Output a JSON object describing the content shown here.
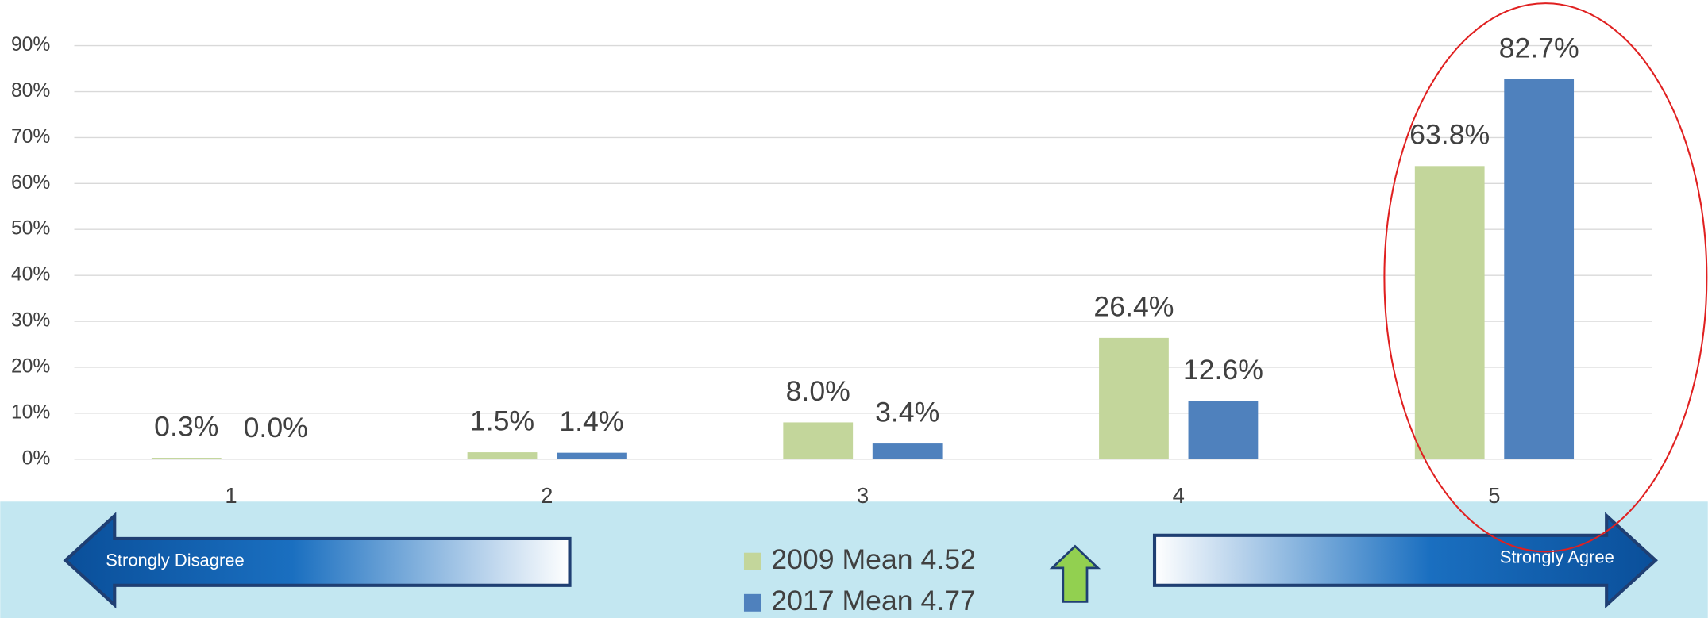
{
  "chart_data": {
    "type": "bar",
    "categories": [
      "1",
      "2",
      "3",
      "4",
      "5"
    ],
    "series": [
      {
        "name": "2009 Mean 4.52",
        "color": "#c3d69b",
        "values": [
          0.3,
          1.5,
          8.0,
          26.4,
          63.8
        ],
        "value_labels": [
          "0.3%",
          "1.5%",
          "8.0%",
          "26.4%",
          "63.8%"
        ]
      },
      {
        "name": "2017 Mean 4.77",
        "color": "#4f81bd",
        "values": [
          0.0,
          1.4,
          3.4,
          12.6,
          82.7
        ],
        "value_labels": [
          "0.0%",
          "1.4%",
          "3.4%",
          "12.6%",
          "82.7%"
        ]
      }
    ],
    "ylim": [
      0,
      90
    ],
    "yticks": [
      {
        "value": 0,
        "label": "0%"
      },
      {
        "value": 10,
        "label": "10%"
      },
      {
        "value": 20,
        "label": "20%"
      },
      {
        "value": 30,
        "label": "30%"
      },
      {
        "value": 40,
        "label": "40%"
      },
      {
        "value": 50,
        "label": "50%"
      },
      {
        "value": 60,
        "label": "60%"
      },
      {
        "value": 70,
        "label": "70%"
      },
      {
        "value": 80,
        "label": "80%"
      },
      {
        "value": 90,
        "label": "90%"
      }
    ],
    "grid": true,
    "annotations": [
      "Strongly Disagree",
      "Strongly Agree"
    ]
  }
}
